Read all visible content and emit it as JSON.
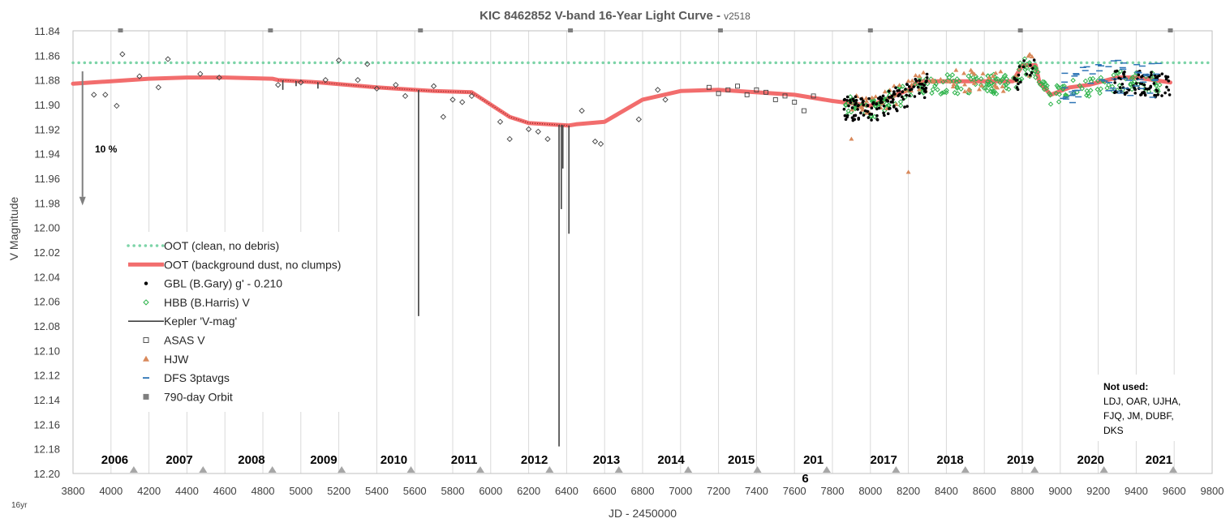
{
  "chart_data": {
    "type": "scatter",
    "title": "KIC 8462852 V-band 16-Year Light Curve - ",
    "title_version": "v2518",
    "xlabel": "JD - 2450000",
    "ylabel": "V Magnitude",
    "xlim": [
      3800,
      9800
    ],
    "ylim": [
      11.84,
      12.2
    ],
    "y_inverted": true,
    "grid": "vertical",
    "x_ticks": [
      3800,
      4000,
      4200,
      4400,
      4600,
      4800,
      5000,
      5200,
      5400,
      5600,
      5800,
      6000,
      6200,
      6400,
      6600,
      6800,
      7000,
      7200,
      7400,
      7600,
      7800,
      8000,
      8200,
      8400,
      8600,
      8800,
      9000,
      9200,
      9400,
      9600,
      9800
    ],
    "y_ticks": [
      "11.84",
      "11.86",
      "11.88",
      "11.90",
      "11.92",
      "11.94",
      "11.96",
      "11.98",
      "12.00",
      "12.02",
      "12.04",
      "12.06",
      "12.08",
      "12.10",
      "12.12",
      "12.14",
      "12.16",
      "12.18",
      "12.20"
    ],
    "years": [
      {
        "label": "2006",
        "x": 4020
      },
      {
        "label": "2007",
        "x": 4360
      },
      {
        "label": "2008",
        "x": 4740
      },
      {
        "label": "2009",
        "x": 5120
      },
      {
        "label": "2010",
        "x": 5490
      },
      {
        "label": "2011",
        "x": 5860
      },
      {
        "label": "2012",
        "x": 6230
      },
      {
        "label": "2013",
        "x": 6610
      },
      {
        "label": "2014",
        "x": 6950
      },
      {
        "label": "2015",
        "x": 7320
      },
      {
        "label": "201",
        "label2": "6",
        "x": 7700
      },
      {
        "label": "2017",
        "x": 8070
      },
      {
        "label": "2018",
        "x": 8420
      },
      {
        "label": "2019",
        "x": 8790
      },
      {
        "label": "2020",
        "x": 9160
      },
      {
        "label": "2021",
        "x": 9520
      }
    ],
    "year_markers_x": [
      4120,
      4485,
      4850,
      5215,
      5580,
      5945,
      6310,
      6675,
      7040,
      7405,
      7770,
      8135,
      8500,
      8865,
      9230,
      9595
    ],
    "orbit_x": [
      4050,
      4840,
      5630,
      6420,
      7210,
      8000,
      8790,
      9580
    ],
    "oot_clean": 11.866,
    "oot_background": [
      [
        3800,
        11.883
      ],
      [
        4000,
        11.881
      ],
      [
        4200,
        11.879
      ],
      [
        4400,
        11.878
      ],
      [
        4600,
        11.878
      ],
      [
        4850,
        11.879
      ],
      [
        4880,
        11.88
      ],
      [
        5100,
        11.882
      ],
      [
        5400,
        11.886
      ],
      [
        5700,
        11.889
      ],
      [
        5900,
        11.89
      ],
      [
        6000,
        11.9
      ],
      [
        6100,
        11.91
      ],
      [
        6200,
        11.915
      ],
      [
        6410,
        11.917
      ],
      [
        6450,
        11.916
      ],
      [
        6600,
        11.914
      ],
      [
        6800,
        11.896
      ],
      [
        7000,
        11.889
      ],
      [
        7200,
        11.888
      ],
      [
        7600,
        11.892
      ],
      [
        7800,
        11.897
      ],
      [
        8000,
        11.901
      ],
      [
        8200,
        11.888
      ],
      [
        8250,
        11.881
      ],
      [
        8750,
        11.881
      ],
      [
        8800,
        11.868
      ],
      [
        8870,
        11.868
      ],
      [
        8890,
        11.882
      ],
      [
        8950,
        11.892
      ],
      [
        9050,
        11.886
      ],
      [
        9150,
        11.884
      ],
      [
        9300,
        11.878
      ],
      [
        9400,
        11.878
      ],
      [
        9580,
        11.882
      ]
    ],
    "kepler_dips": [
      [
        5620,
        12.072
      ],
      [
        6360,
        12.178
      ],
      [
        6372,
        11.985
      ],
      [
        6380,
        11.952
      ],
      [
        6412,
        12.005
      ],
      [
        4905,
        11.888
      ],
      [
        4975,
        11.885
      ],
      [
        5090,
        11.887
      ]
    ],
    "asas_diamonds": [
      [
        3910,
        11.892
      ],
      [
        3970,
        11.892
      ],
      [
        4030,
        11.901
      ],
      [
        4060,
        11.859
      ],
      [
        4150,
        11.877
      ],
      [
        4250,
        11.886
      ],
      [
        4300,
        11.863
      ],
      [
        4470,
        11.875
      ],
      [
        4570,
        11.878
      ],
      [
        4880,
        11.884
      ],
      [
        5000,
        11.882
      ],
      [
        5130,
        11.88
      ],
      [
        5200,
        11.864
      ],
      [
        5300,
        11.88
      ],
      [
        5350,
        11.867
      ],
      [
        5400,
        11.887
      ],
      [
        5500,
        11.884
      ],
      [
        5550,
        11.893
      ],
      [
        5700,
        11.885
      ],
      [
        5750,
        11.91
      ],
      [
        5800,
        11.896
      ],
      [
        5850,
        11.898
      ],
      [
        5900,
        11.893
      ],
      [
        6050,
        11.914
      ],
      [
        6100,
        11.928
      ],
      [
        6200,
        11.92
      ],
      [
        6250,
        11.922
      ],
      [
        6300,
        11.928
      ],
      [
        6480,
        11.905
      ],
      [
        6550,
        11.93
      ],
      [
        6580,
        11.932
      ],
      [
        6780,
        11.912
      ],
      [
        6880,
        11.888
      ],
      [
        6920,
        11.896
      ]
    ],
    "asas_squares": [
      [
        7150,
        11.886
      ],
      [
        7200,
        11.891
      ],
      [
        7250,
        11.888
      ],
      [
        7300,
        11.885
      ],
      [
        7350,
        11.892
      ],
      [
        7400,
        11.888
      ],
      [
        7450,
        11.89
      ],
      [
        7500,
        11.896
      ],
      [
        7550,
        11.893
      ],
      [
        7600,
        11.898
      ],
      [
        7650,
        11.905
      ],
      [
        7700,
        11.893
      ]
    ],
    "legend": [
      {
        "label": "OOT (clean, no debris)",
        "kind": "dotted",
        "color": "#7dd4a8"
      },
      {
        "label": "OOT (background dust, no clumps)",
        "kind": "thick",
        "color": "#f26d6d"
      },
      {
        "label": "GBL (B.Gary) g' - 0.210",
        "kind": "dot",
        "color": "#000000"
      },
      {
        "label": "HBB (B.Harris) V",
        "kind": "diamond",
        "color": "#2db34a"
      },
      {
        "label": "Kepler 'V-mag'",
        "kind": "line",
        "color": "#404040"
      },
      {
        "label": "ASAS V",
        "kind": "square",
        "color": "#404040"
      },
      {
        "label": "HJW",
        "kind": "triangle",
        "color": "#d9895b"
      },
      {
        "label": "DFS 3ptavgs",
        "kind": "dash",
        "color": "#2e75b6"
      },
      {
        "label": "790-day Orbit",
        "kind": "bigsquare",
        "color": "#7f7f7f"
      }
    ],
    "annotation_dip": "10 %",
    "not_used_title": "Not used:",
    "not_used_lines": [
      "LDJ, OAR, UJHA,",
      "FJQ, JM, DUBF,",
      "DKS"
    ],
    "corner_label": "16yr"
  }
}
